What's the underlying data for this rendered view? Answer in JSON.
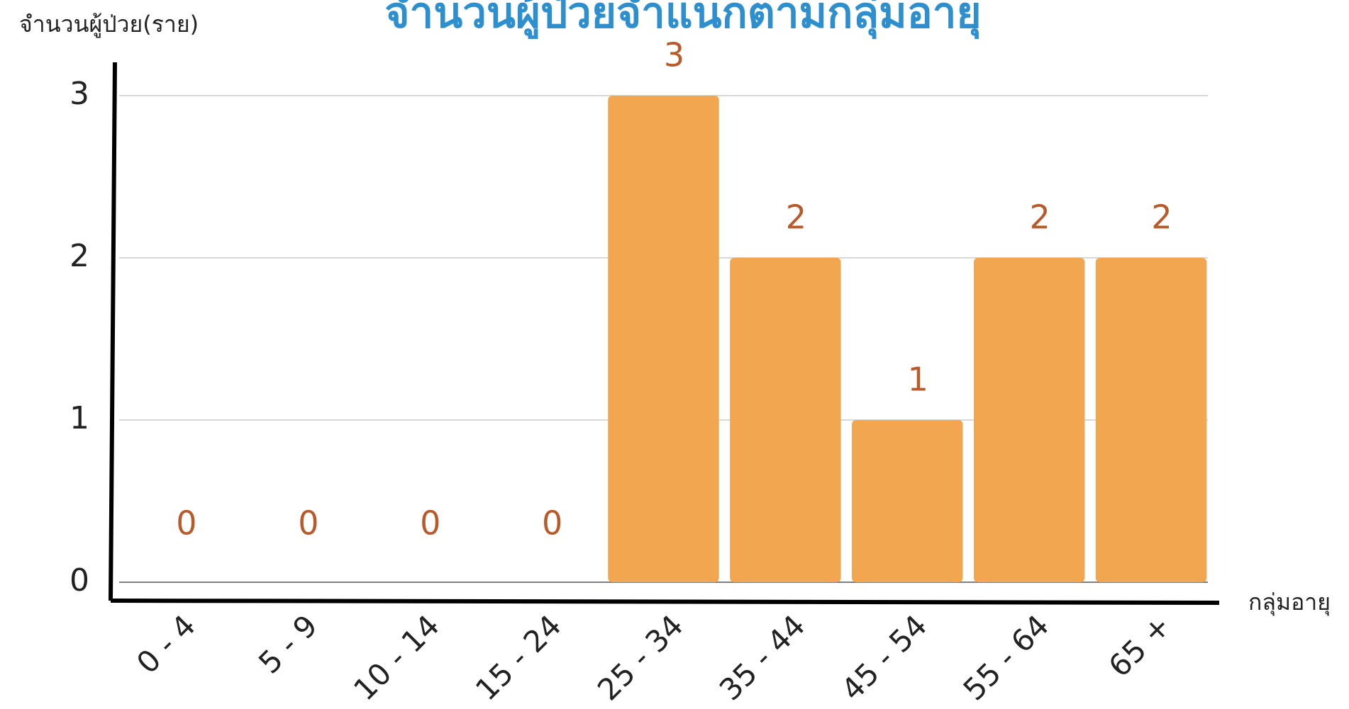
{
  "chart_data": {
    "type": "bar",
    "title": "จำนวนผู้ป่วยจำแนกตามกลุ่มอายุ",
    "y_label": "จำนวนผู้ป่วย(ราย)",
    "x_label": "กลุ่มอายุ",
    "categories": [
      "0 - 4",
      "5 - 9",
      "10 - 14",
      "15 - 24",
      "25 - 34",
      "35 - 44",
      "45 - 54",
      "55 - 64",
      "65 +"
    ],
    "values": [
      0,
      0,
      0,
      0,
      3,
      2,
      1,
      2,
      2
    ],
    "color": "#f2a64f",
    "label_color": "#b85a2a",
    "ylim": [
      0,
      3
    ],
    "yticks": [
      0,
      1,
      2,
      3
    ],
    "grid": true
  }
}
